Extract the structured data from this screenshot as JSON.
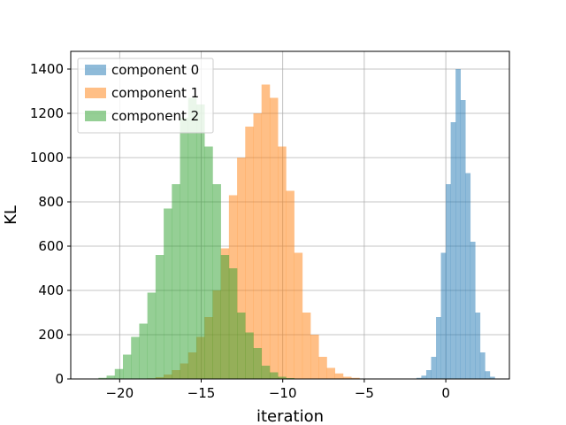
{
  "chart_data": {
    "type": "bar",
    "xlabel": "iteration",
    "ylabel": "KL",
    "xlim": [
      -23,
      3.9
    ],
    "ylim": [
      0,
      1480
    ],
    "xticks": [
      -20,
      -15,
      -10,
      -5,
      0
    ],
    "xtick_labels": [
      "−20",
      "−15",
      "−10",
      "−5",
      "0"
    ],
    "yticks": [
      0,
      200,
      400,
      600,
      800,
      1000,
      1200,
      1400
    ],
    "ytick_labels": [
      "0",
      "200",
      "400",
      "600",
      "800",
      "1000",
      "1200",
      "1400"
    ],
    "grid": true,
    "legend_position": "top-left",
    "series": [
      {
        "name": "component 0",
        "color": "#1f77b4",
        "bins": [
          [
            -2.1,
            -1.8,
            2
          ],
          [
            -1.8,
            -1.5,
            5
          ],
          [
            -1.5,
            -1.2,
            15
          ],
          [
            -1.2,
            -0.9,
            40
          ],
          [
            -0.9,
            -0.6,
            100
          ],
          [
            -0.6,
            -0.3,
            280
          ],
          [
            -0.3,
            0.0,
            570
          ],
          [
            0.0,
            0.3,
            880
          ],
          [
            0.3,
            0.6,
            1160
          ],
          [
            0.6,
            0.9,
            1400
          ],
          [
            0.9,
            1.2,
            1260
          ],
          [
            1.2,
            1.5,
            930
          ],
          [
            1.5,
            1.8,
            620
          ],
          [
            1.8,
            2.1,
            300
          ],
          [
            2.1,
            2.4,
            120
          ],
          [
            2.4,
            2.7,
            35
          ],
          [
            2.7,
            3.0,
            10
          ]
        ]
      },
      {
        "name": "component 1",
        "color": "#ff7f0e",
        "bins": [
          [
            -18.3,
            -17.8,
            3
          ],
          [
            -17.8,
            -17.3,
            8
          ],
          [
            -17.3,
            -16.8,
            20
          ],
          [
            -16.8,
            -16.3,
            40
          ],
          [
            -16.3,
            -15.8,
            70
          ],
          [
            -15.8,
            -15.3,
            120
          ],
          [
            -15.3,
            -14.8,
            190
          ],
          [
            -14.8,
            -14.3,
            280
          ],
          [
            -14.3,
            -13.8,
            400
          ],
          [
            -13.8,
            -13.3,
            590
          ],
          [
            -13.3,
            -12.8,
            830
          ],
          [
            -12.8,
            -12.3,
            1000
          ],
          [
            -12.3,
            -11.8,
            1140
          ],
          [
            -11.8,
            -11.3,
            1200
          ],
          [
            -11.3,
            -10.8,
            1330
          ],
          [
            -10.8,
            -10.3,
            1270
          ],
          [
            -10.3,
            -9.8,
            1050
          ],
          [
            -9.8,
            -9.3,
            850
          ],
          [
            -9.3,
            -8.8,
            570
          ],
          [
            -8.8,
            -8.3,
            300
          ],
          [
            -8.3,
            -7.8,
            200
          ],
          [
            -7.8,
            -7.3,
            100
          ],
          [
            -7.3,
            -6.8,
            50
          ],
          [
            -6.8,
            -6.3,
            25
          ],
          [
            -6.3,
            -5.8,
            10
          ],
          [
            -5.8,
            -5.3,
            5
          ]
        ]
      },
      {
        "name": "component 2",
        "color": "#2ca02c",
        "bins": [
          [
            -21.3,
            -20.8,
            5
          ],
          [
            -20.8,
            -20.3,
            15
          ],
          [
            -20.3,
            -19.8,
            45
          ],
          [
            -19.8,
            -19.3,
            110
          ],
          [
            -19.3,
            -18.8,
            190
          ],
          [
            -18.8,
            -18.3,
            250
          ],
          [
            -18.3,
            -17.8,
            390
          ],
          [
            -17.8,
            -17.3,
            560
          ],
          [
            -17.3,
            -16.8,
            770
          ],
          [
            -16.8,
            -16.3,
            880
          ],
          [
            -16.3,
            -15.8,
            1180
          ],
          [
            -15.8,
            -15.3,
            1270
          ],
          [
            -15.3,
            -14.8,
            1240
          ],
          [
            -14.8,
            -14.3,
            1050
          ],
          [
            -14.3,
            -13.8,
            880
          ],
          [
            -13.8,
            -13.3,
            560
          ],
          [
            -13.3,
            -12.8,
            500
          ],
          [
            -12.8,
            -12.3,
            300
          ],
          [
            -12.3,
            -11.8,
            210
          ],
          [
            -11.8,
            -11.3,
            140
          ],
          [
            -11.3,
            -10.8,
            60
          ],
          [
            -10.8,
            -10.3,
            30
          ],
          [
            -10.3,
            -9.8,
            10
          ],
          [
            -9.8,
            -9.3,
            4
          ]
        ]
      }
    ]
  }
}
